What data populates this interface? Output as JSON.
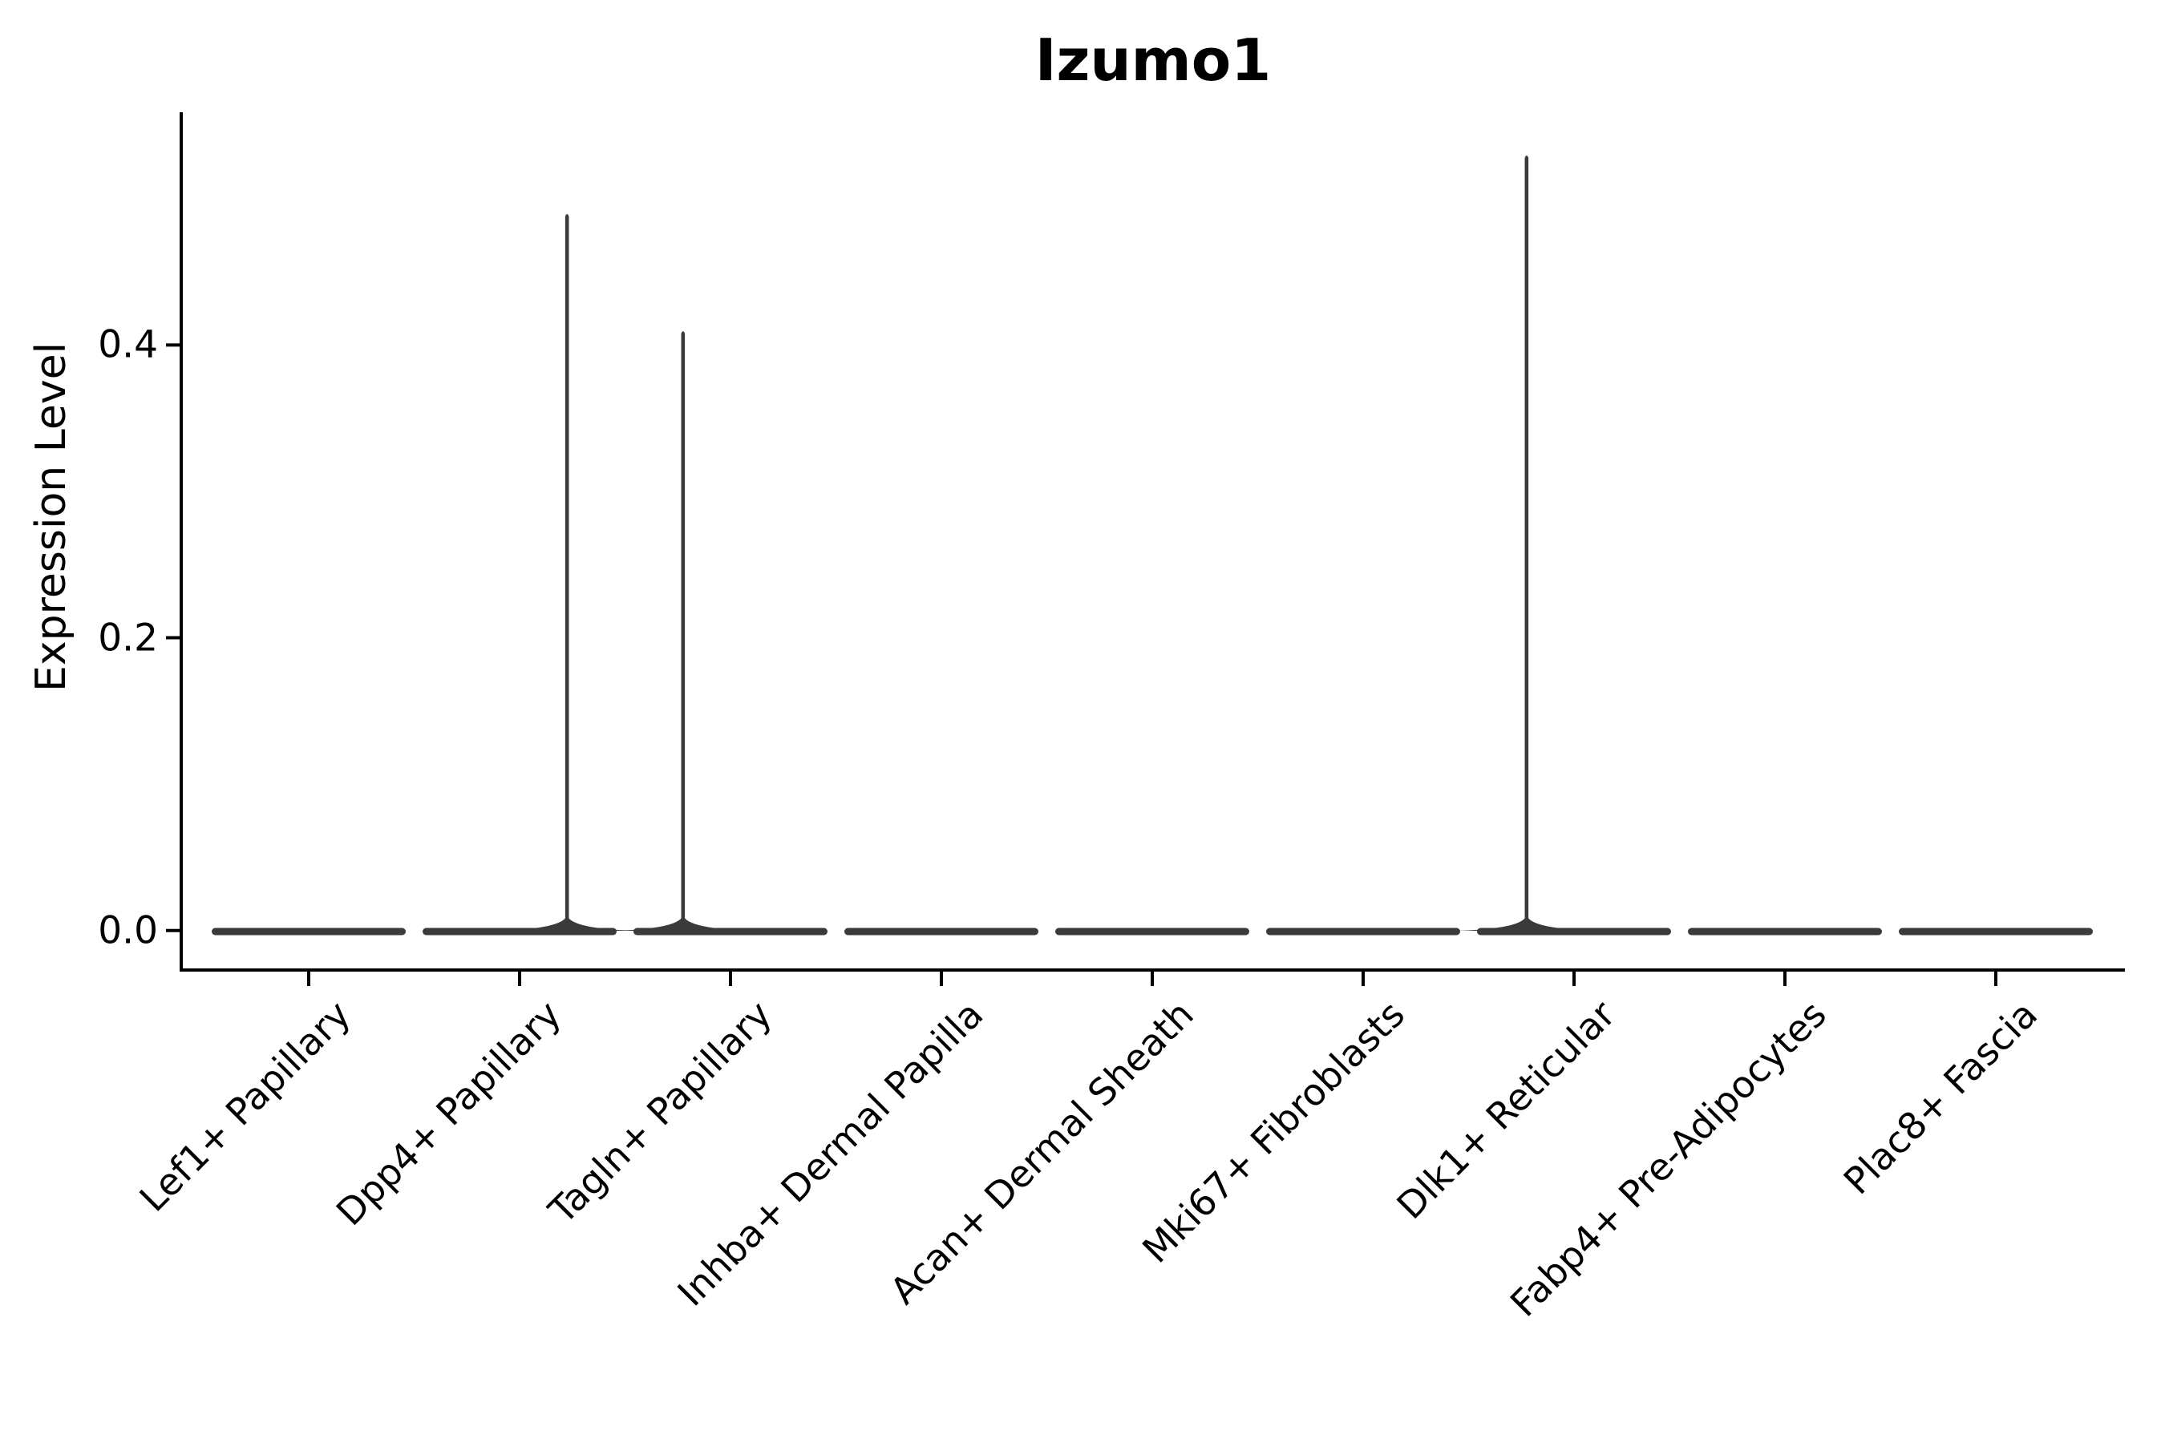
{
  "figure": {
    "background": "#ffffff"
  },
  "chart_data": {
    "type": "violin",
    "title": "Izumo1",
    "ylabel": "Expression Level",
    "xlabel": "",
    "grid": false,
    "legend": "none",
    "violin_color": "#3a3a3a",
    "axis_color": "#000000",
    "text_color": "#000000",
    "ylim": [
      -0.027,
      0.559
    ],
    "yticks": [
      {
        "value": 0.0,
        "label": "0.0"
      },
      {
        "value": 0.2,
        "label": "0.2"
      },
      {
        "value": 0.4,
        "label": "0.4"
      }
    ],
    "categories": [
      "Lef1+ Papillary",
      "Dpp4+ Papillary",
      "Tagln+ Papillary",
      "Inhba+ Dermal Papilla",
      "Acan+ Dermal Sheath",
      "Mki67+ Fibroblasts",
      "Dlk1+ Reticular",
      "Fabp4+ Pre-Adipocytes",
      "Plac8+ Fascia"
    ],
    "series": [
      {
        "name": "Lef1+ Papillary",
        "baseline_value": 0.0,
        "max_expression": 0.0,
        "spike_offset_frac": 0
      },
      {
        "name": "Dpp4+ Papillary",
        "baseline_value": 0.0,
        "max_expression": 0.49,
        "spike_offset_frac": 0.225
      },
      {
        "name": "Tagln+ Papillary",
        "baseline_value": 0.0,
        "max_expression": 0.41,
        "spike_offset_frac": -0.225
      },
      {
        "name": "Inhba+ Dermal Papilla",
        "baseline_value": 0.0,
        "max_expression": 0.0,
        "spike_offset_frac": 0
      },
      {
        "name": "Acan+ Dermal Sheath",
        "baseline_value": 0.0,
        "max_expression": 0.0,
        "spike_offset_frac": 0
      },
      {
        "name": "Mki67+ Fibroblasts",
        "baseline_value": 0.0,
        "max_expression": 0.0,
        "spike_offset_frac": 0
      },
      {
        "name": "Dlk1+ Reticular",
        "baseline_value": 0.0,
        "max_expression": 0.53,
        "spike_offset_frac": -0.225
      },
      {
        "name": "Fabp4+ Pre-Adipocytes",
        "baseline_value": 0.0,
        "max_expression": 0.0,
        "spike_offset_frac": 0
      },
      {
        "name": "Plac8+ Fascia",
        "baseline_value": 0.0,
        "max_expression": 0.0,
        "spike_offset_frac": 0
      }
    ]
  }
}
